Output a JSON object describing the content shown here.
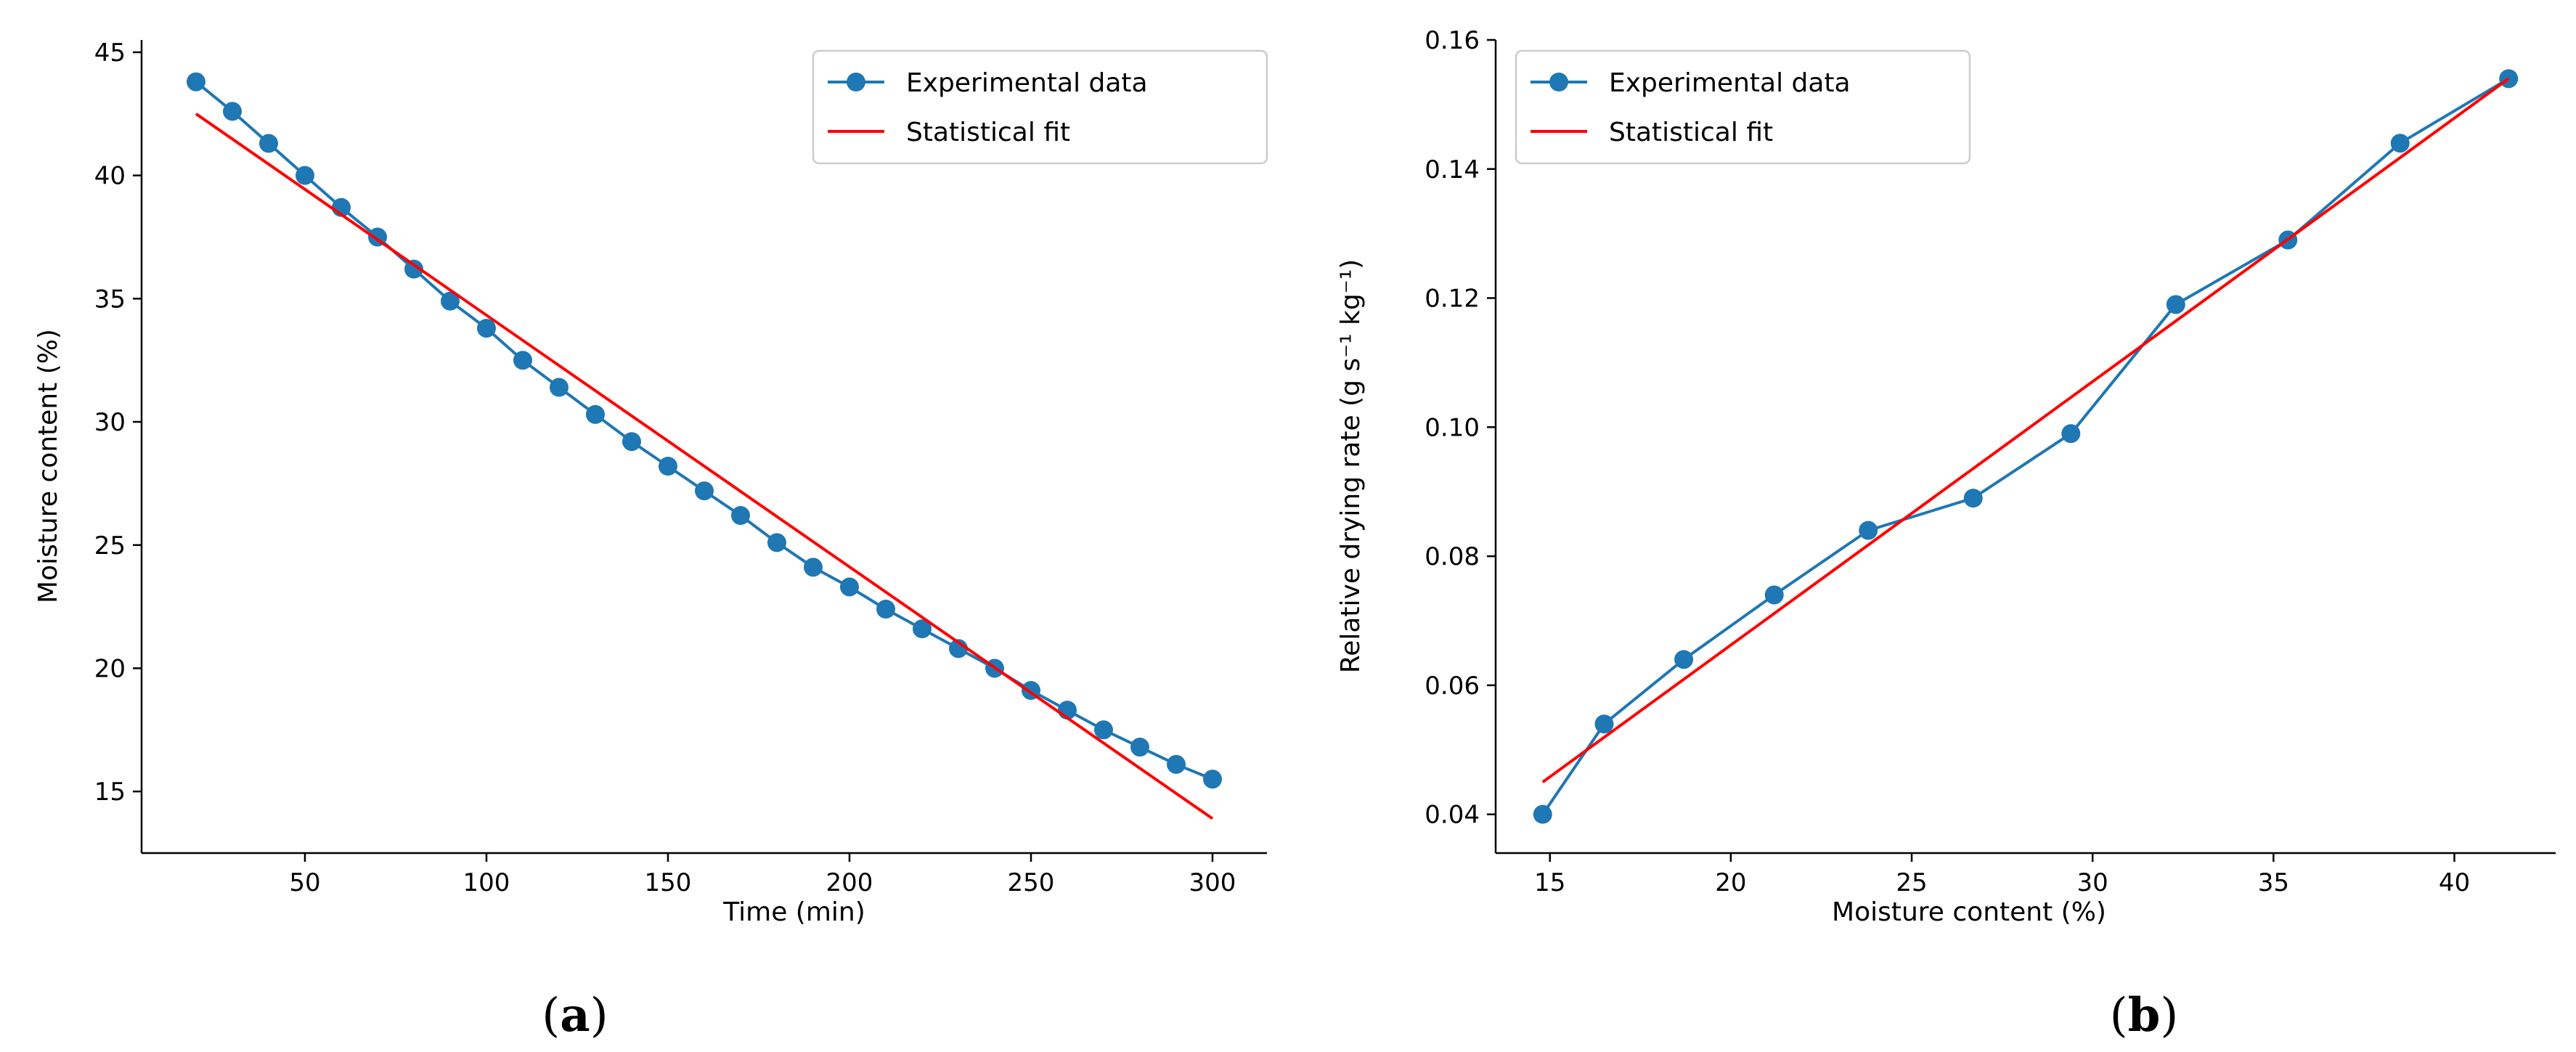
{
  "colors": {
    "experimental": "#1f77b4",
    "fit": "#ff0000",
    "axis": "#000000",
    "legend_border": "#cccccc"
  },
  "chart_data": [
    {
      "type": "line",
      "panel_label": {
        "open": "(",
        "letter": "a",
        "close": ")"
      },
      "xlabel": "Time (min)",
      "ylabel": "Moisture content (%)",
      "xlim": [
        5,
        315
      ],
      "ylim": [
        12.5,
        45.5
      ],
      "xticks": [
        50,
        100,
        150,
        200,
        250,
        300
      ],
      "yticks": [
        15,
        20,
        25,
        30,
        35,
        40,
        45
      ],
      "grid": false,
      "legend_position": "top-right",
      "series": [
        {
          "name": "Experimental data",
          "style": "line-marker",
          "x": [
            20,
            30,
            40,
            50,
            60,
            70,
            80,
            90,
            100,
            110,
            120,
            130,
            140,
            150,
            160,
            170,
            180,
            190,
            200,
            210,
            220,
            230,
            240,
            250,
            260,
            270,
            280,
            290,
            300
          ],
          "y": [
            43.8,
            42.6,
            41.3,
            40.0,
            38.7,
            37.5,
            36.2,
            34.9,
            33.8,
            32.5,
            31.4,
            30.3,
            29.2,
            28.2,
            27.2,
            26.2,
            25.1,
            24.1,
            23.3,
            22.4,
            21.6,
            20.8,
            20.0,
            19.1,
            18.3,
            17.5,
            16.8,
            16.1,
            15.5
          ]
        },
        {
          "name": "Statistical fit",
          "style": "line",
          "x": [
            20,
            300
          ],
          "y": [
            42.5,
            13.9
          ]
        }
      ]
    },
    {
      "type": "line",
      "panel_label": {
        "open": "(",
        "letter": "b",
        "close": ")"
      },
      "xlabel": "Moisture content (%)",
      "ylabel": "Relative drying rate (g s⁻¹ kg⁻¹)",
      "xlim": [
        13.5,
        42.8
      ],
      "ylim": [
        0.034,
        0.16
      ],
      "xticks": [
        15,
        20,
        25,
        30,
        35,
        40
      ],
      "yticks": [
        "0.04",
        "0.06",
        "0.08",
        "0.10",
        "0.12",
        "0.14",
        "0.16"
      ],
      "grid": false,
      "legend_position": "top-left",
      "series": [
        {
          "name": "Experimental data",
          "style": "line-marker",
          "x": [
            14.8,
            16.5,
            18.7,
            21.2,
            23.8,
            26.7,
            29.4,
            32.3,
            35.4,
            38.5,
            41.5
          ],
          "y": [
            0.04,
            0.054,
            0.064,
            0.074,
            0.084,
            0.089,
            0.099,
            0.119,
            0.129,
            0.144,
            0.154
          ]
        },
        {
          "name": "Statistical fit",
          "style": "line",
          "x": [
            14.8,
            41.5
          ],
          "y": [
            0.045,
            0.154
          ]
        }
      ]
    }
  ]
}
